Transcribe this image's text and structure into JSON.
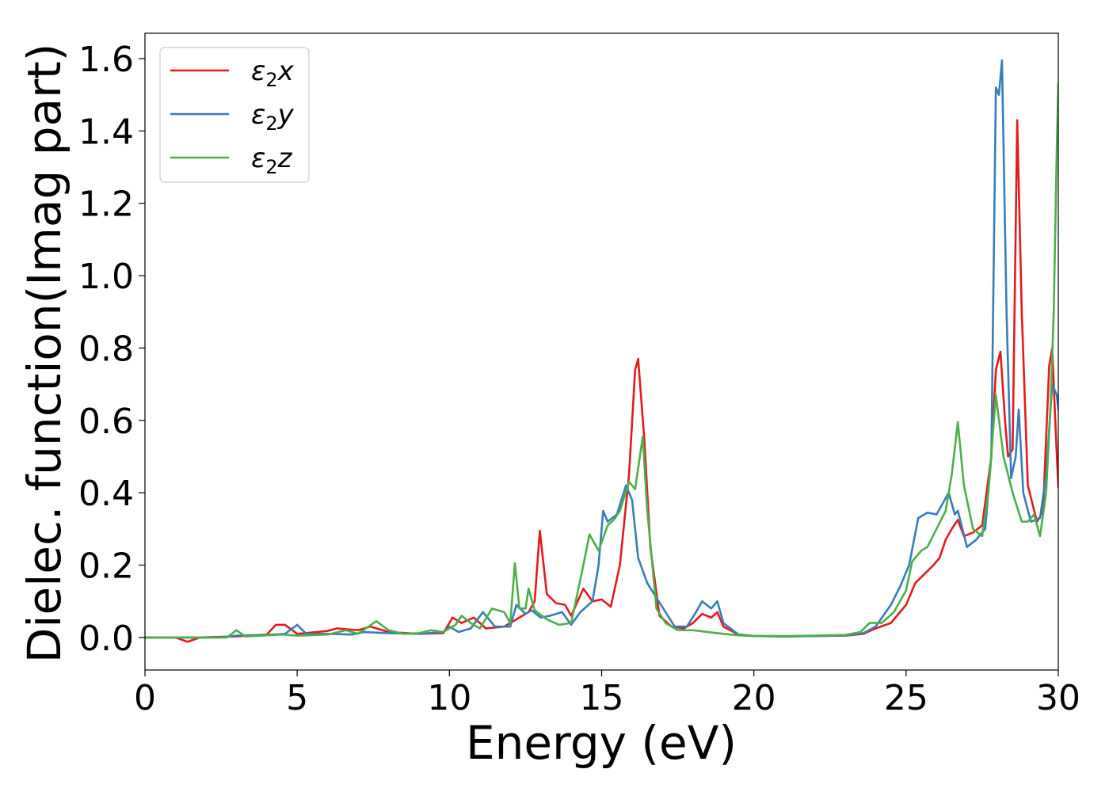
{
  "chart_data": {
    "type": "line",
    "title": "",
    "xlabel": "Energy (eV)",
    "ylabel": "Dielec. function(Imag part)",
    "xlim": [
      0,
      30
    ],
    "ylim": [
      -0.09,
      1.67
    ],
    "xticks": [
      0,
      5,
      10,
      15,
      20,
      25,
      30
    ],
    "xtick_labels": [
      "0",
      "5",
      "10",
      "15",
      "20",
      "25",
      "30"
    ],
    "yticks": [
      0.0,
      0.2,
      0.4,
      0.6,
      0.8,
      1.0,
      1.2,
      1.4,
      1.6
    ],
    "ytick_labels": [
      "0.0",
      "0.2",
      "0.4",
      "0.6",
      "0.8",
      "1.0",
      "1.2",
      "1.4",
      "1.6"
    ],
    "grid": false,
    "legend_position": "top-left",
    "series": [
      {
        "name": "ε2x",
        "legend_main": "ε",
        "legend_sub": "2",
        "legend_var": "x",
        "color": "#e41a1c",
        "points": [
          [
            0,
            0
          ],
          [
            1.0,
            0.0
          ],
          [
            1.4,
            -0.012
          ],
          [
            1.8,
            0.0
          ],
          [
            3.0,
            0.003
          ],
          [
            4.0,
            0.008
          ],
          [
            4.3,
            0.035
          ],
          [
            4.6,
            0.035
          ],
          [
            5.0,
            0.01
          ],
          [
            6.0,
            0.018
          ],
          [
            6.3,
            0.025
          ],
          [
            7.0,
            0.02
          ],
          [
            7.4,
            0.03
          ],
          [
            8.0,
            0.015
          ],
          [
            9.0,
            0.01
          ],
          [
            9.8,
            0.012
          ],
          [
            10.1,
            0.055
          ],
          [
            10.4,
            0.04
          ],
          [
            10.8,
            0.055
          ],
          [
            11.2,
            0.025
          ],
          [
            11.8,
            0.03
          ],
          [
            12.2,
            0.05
          ],
          [
            12.6,
            0.07
          ],
          [
            12.8,
            0.1
          ],
          [
            12.97,
            0.295
          ],
          [
            13.2,
            0.12
          ],
          [
            13.5,
            0.095
          ],
          [
            13.8,
            0.09
          ],
          [
            14.0,
            0.06
          ],
          [
            14.4,
            0.135
          ],
          [
            14.7,
            0.1
          ],
          [
            15.0,
            0.105
          ],
          [
            15.3,
            0.085
          ],
          [
            15.6,
            0.2
          ],
          [
            15.9,
            0.45
          ],
          [
            16.1,
            0.74
          ],
          [
            16.2,
            0.77
          ],
          [
            16.4,
            0.55
          ],
          [
            16.6,
            0.25
          ],
          [
            16.9,
            0.06
          ],
          [
            17.3,
            0.03
          ],
          [
            17.7,
            0.025
          ],
          [
            18.0,
            0.04
          ],
          [
            18.3,
            0.065
          ],
          [
            18.6,
            0.055
          ],
          [
            18.8,
            0.07
          ],
          [
            19.0,
            0.03
          ],
          [
            19.5,
            0.008
          ],
          [
            20.0,
            0.004
          ],
          [
            21.0,
            0.003
          ],
          [
            22.0,
            0.004
          ],
          [
            23.0,
            0.005
          ],
          [
            23.6,
            0.01
          ],
          [
            24.0,
            0.025
          ],
          [
            24.5,
            0.04
          ],
          [
            25.0,
            0.09
          ],
          [
            25.3,
            0.15
          ],
          [
            25.6,
            0.175
          ],
          [
            25.9,
            0.2
          ],
          [
            26.1,
            0.22
          ],
          [
            26.3,
            0.27
          ],
          [
            26.5,
            0.3
          ],
          [
            26.7,
            0.325
          ],
          [
            26.9,
            0.28
          ],
          [
            27.2,
            0.29
          ],
          [
            27.5,
            0.31
          ],
          [
            27.8,
            0.5
          ],
          [
            27.95,
            0.74
          ],
          [
            28.1,
            0.79
          ],
          [
            28.25,
            0.6
          ],
          [
            28.35,
            0.5
          ],
          [
            28.5,
            0.52
          ],
          [
            28.65,
            1.43
          ],
          [
            28.8,
            0.9
          ],
          [
            29.0,
            0.42
          ],
          [
            29.3,
            0.32
          ],
          [
            29.5,
            0.35
          ],
          [
            29.7,
            0.75
          ],
          [
            29.8,
            0.8
          ],
          [
            29.9,
            0.6
          ],
          [
            30.0,
            0.415
          ]
        ]
      },
      {
        "name": "ε2y",
        "legend_main": "ε",
        "legend_sub": "2",
        "legend_var": "y",
        "color": "#377eb8",
        "points": [
          [
            0,
            0
          ],
          [
            1.5,
            0.0
          ],
          [
            2.5,
            0.0
          ],
          [
            3.0,
            0.005
          ],
          [
            4.0,
            0.007
          ],
          [
            4.6,
            0.01
          ],
          [
            5.0,
            0.035
          ],
          [
            5.3,
            0.01
          ],
          [
            6.0,
            0.01
          ],
          [
            6.8,
            0.008
          ],
          [
            7.2,
            0.015
          ],
          [
            8.0,
            0.012
          ],
          [
            9.0,
            0.01
          ],
          [
            9.8,
            0.015
          ],
          [
            10.0,
            0.03
          ],
          [
            10.3,
            0.015
          ],
          [
            10.7,
            0.025
          ],
          [
            11.1,
            0.07
          ],
          [
            11.5,
            0.03
          ],
          [
            12.0,
            0.03
          ],
          [
            12.2,
            0.09
          ],
          [
            12.5,
            0.065
          ],
          [
            12.7,
            0.075
          ],
          [
            13.0,
            0.055
          ],
          [
            13.3,
            0.06
          ],
          [
            13.7,
            0.07
          ],
          [
            14.0,
            0.035
          ],
          [
            14.3,
            0.07
          ],
          [
            14.7,
            0.1
          ],
          [
            14.9,
            0.2
          ],
          [
            15.05,
            0.35
          ],
          [
            15.2,
            0.32
          ],
          [
            15.5,
            0.34
          ],
          [
            15.8,
            0.42
          ],
          [
            16.0,
            0.38
          ],
          [
            16.2,
            0.22
          ],
          [
            16.5,
            0.15
          ],
          [
            16.8,
            0.11
          ],
          [
            17.1,
            0.07
          ],
          [
            17.4,
            0.03
          ],
          [
            17.8,
            0.03
          ],
          [
            18.1,
            0.07
          ],
          [
            18.3,
            0.1
          ],
          [
            18.6,
            0.08
          ],
          [
            18.8,
            0.1
          ],
          [
            19.0,
            0.04
          ],
          [
            19.5,
            0.008
          ],
          [
            20.0,
            0.004
          ],
          [
            21.0,
            0.003
          ],
          [
            22.0,
            0.004
          ],
          [
            23.0,
            0.006
          ],
          [
            23.6,
            0.012
          ],
          [
            24.0,
            0.03
          ],
          [
            24.5,
            0.09
          ],
          [
            24.8,
            0.14
          ],
          [
            25.1,
            0.2
          ],
          [
            25.4,
            0.33
          ],
          [
            25.7,
            0.345
          ],
          [
            26.0,
            0.34
          ],
          [
            26.2,
            0.37
          ],
          [
            26.4,
            0.4
          ],
          [
            26.6,
            0.34
          ],
          [
            26.7,
            0.35
          ],
          [
            27.0,
            0.25
          ],
          [
            27.3,
            0.27
          ],
          [
            27.6,
            0.3
          ],
          [
            27.8,
            0.5
          ],
          [
            27.95,
            1.52
          ],
          [
            28.05,
            1.5
          ],
          [
            28.15,
            1.595
          ],
          [
            28.3,
            0.9
          ],
          [
            28.45,
            0.44
          ],
          [
            28.6,
            0.5
          ],
          [
            28.7,
            0.63
          ],
          [
            28.85,
            0.4
          ],
          [
            29.1,
            0.32
          ],
          [
            29.4,
            0.33
          ],
          [
            29.6,
            0.45
          ],
          [
            29.8,
            0.7
          ],
          [
            29.95,
            0.67
          ],
          [
            30.0,
            0.63
          ]
        ]
      },
      {
        "name": "ε2z",
        "legend_main": "ε",
        "legend_sub": "2",
        "legend_var": "z",
        "color": "#4daf4a",
        "points": [
          [
            0,
            0
          ],
          [
            2.7,
            0.0
          ],
          [
            3.0,
            0.02
          ],
          [
            3.3,
            0.003
          ],
          [
            4.5,
            0.008
          ],
          [
            5.0,
            0.005
          ],
          [
            6.0,
            0.008
          ],
          [
            6.6,
            0.02
          ],
          [
            7.0,
            0.01
          ],
          [
            7.6,
            0.045
          ],
          [
            8.0,
            0.02
          ],
          [
            8.5,
            0.01
          ],
          [
            9.0,
            0.012
          ],
          [
            9.4,
            0.02
          ],
          [
            9.8,
            0.015
          ],
          [
            10.2,
            0.035
          ],
          [
            10.4,
            0.06
          ],
          [
            10.7,
            0.04
          ],
          [
            11.0,
            0.025
          ],
          [
            11.4,
            0.08
          ],
          [
            11.8,
            0.07
          ],
          [
            12.0,
            0.04
          ],
          [
            12.15,
            0.205
          ],
          [
            12.3,
            0.08
          ],
          [
            12.5,
            0.08
          ],
          [
            12.6,
            0.135
          ],
          [
            12.8,
            0.075
          ],
          [
            13.2,
            0.05
          ],
          [
            13.6,
            0.035
          ],
          [
            14.0,
            0.04
          ],
          [
            14.4,
            0.2
          ],
          [
            14.6,
            0.285
          ],
          [
            14.9,
            0.24
          ],
          [
            15.2,
            0.31
          ],
          [
            15.4,
            0.325
          ],
          [
            15.6,
            0.35
          ],
          [
            15.9,
            0.43
          ],
          [
            16.1,
            0.41
          ],
          [
            16.35,
            0.555
          ],
          [
            16.5,
            0.35
          ],
          [
            16.8,
            0.08
          ],
          [
            17.1,
            0.04
          ],
          [
            17.5,
            0.02
          ],
          [
            18.0,
            0.02
          ],
          [
            18.5,
            0.015
          ],
          [
            19.0,
            0.01
          ],
          [
            19.5,
            0.006
          ],
          [
            20.0,
            0.004
          ],
          [
            21.0,
            0.004
          ],
          [
            22.0,
            0.005
          ],
          [
            23.0,
            0.007
          ],
          [
            23.5,
            0.015
          ],
          [
            23.8,
            0.04
          ],
          [
            24.2,
            0.04
          ],
          [
            24.6,
            0.07
          ],
          [
            25.0,
            0.13
          ],
          [
            25.2,
            0.21
          ],
          [
            25.5,
            0.24
          ],
          [
            25.7,
            0.25
          ],
          [
            26.0,
            0.3
          ],
          [
            26.3,
            0.35
          ],
          [
            26.5,
            0.45
          ],
          [
            26.7,
            0.595
          ],
          [
            26.9,
            0.42
          ],
          [
            27.2,
            0.3
          ],
          [
            27.5,
            0.28
          ],
          [
            27.7,
            0.4
          ],
          [
            27.95,
            0.67
          ],
          [
            28.2,
            0.5
          ],
          [
            28.5,
            0.4
          ],
          [
            28.8,
            0.32
          ],
          [
            29.0,
            0.32
          ],
          [
            29.2,
            0.34
          ],
          [
            29.4,
            0.28
          ],
          [
            29.6,
            0.4
          ],
          [
            29.75,
            0.65
          ],
          [
            29.85,
            0.9
          ],
          [
            29.95,
            1.35
          ],
          [
            30.0,
            1.53
          ]
        ]
      }
    ]
  }
}
